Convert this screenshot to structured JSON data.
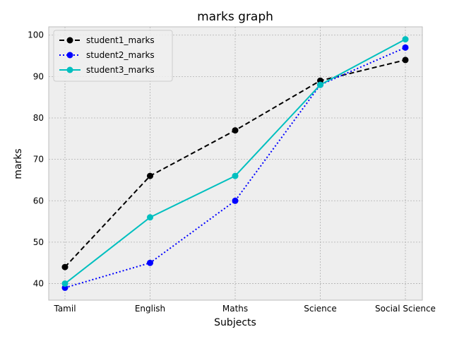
{
  "chart_data": {
    "type": "line",
    "title": "marks graph",
    "xlabel": "Subjects",
    "ylabel": "marks",
    "categories": [
      "Tamil",
      "English",
      "Maths",
      "Science",
      "Social Science"
    ],
    "ylim": [
      36,
      102
    ],
    "yticks": [
      40,
      50,
      60,
      70,
      80,
      90,
      100
    ],
    "grid": true,
    "legend": "top-left",
    "background": "#eeeeee",
    "series": [
      {
        "name": "student1_marks",
        "values": [
          44,
          66,
          77,
          89,
          94
        ],
        "color": "#000000",
        "linestyle": "dashed"
      },
      {
        "name": "student2_marks",
        "values": [
          39,
          45,
          60,
          88,
          97
        ],
        "color": "#0000ff",
        "linestyle": "dotted"
      },
      {
        "name": "student3_marks",
        "values": [
          40,
          56,
          66,
          88,
          99
        ],
        "color": "#00bfbf",
        "linestyle": "solid"
      }
    ]
  }
}
